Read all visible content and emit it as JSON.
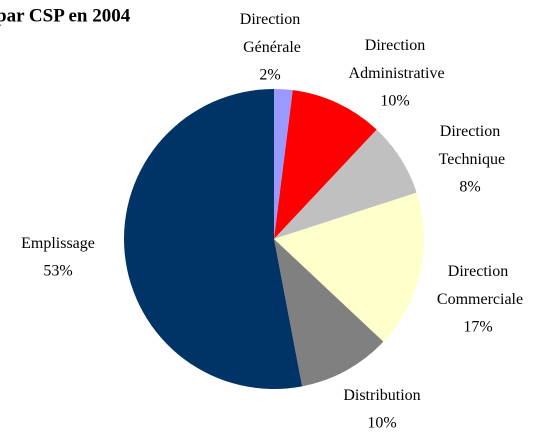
{
  "chart_data": {
    "type": "pie",
    "title": "par CSP en 2004",
    "categories": [
      "Direction Générale",
      "Direction Administrative",
      "Direction Technique",
      "Direction Commerciale",
      "Distribution",
      "Emplissage"
    ],
    "values": [
      2,
      10,
      8,
      17,
      10,
      53
    ],
    "value_labels": [
      "2%",
      "10%",
      "8%",
      "17%",
      "10%",
      "53%"
    ],
    "colors": [
      "#9999ff",
      "#ff0000",
      "#c0c0c0",
      "#ffffcc",
      "#808080",
      "#003366"
    ]
  }
}
